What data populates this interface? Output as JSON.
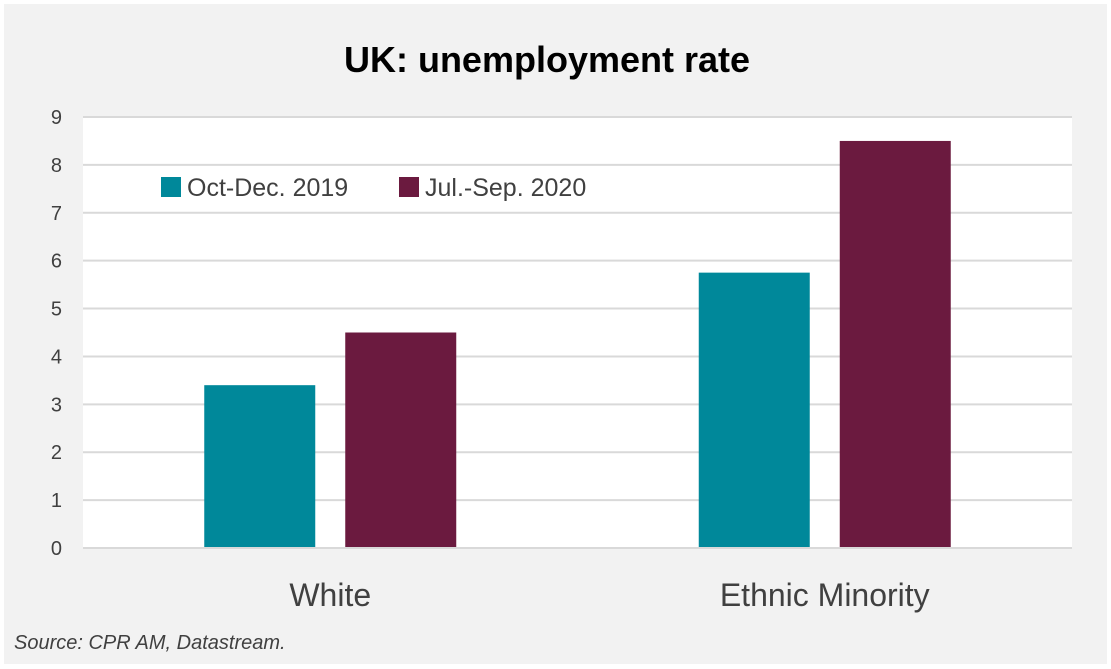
{
  "chart_data": {
    "type": "bar",
    "title": "UK: unemployment rate",
    "categories": [
      "White",
      "Ethnic Minority"
    ],
    "series": [
      {
        "name": "Oct-Dec. 2019",
        "values": [
          3.4,
          5.75
        ],
        "color": "#00889a"
      },
      {
        "name": "Jul.-Sep. 2020",
        "values": [
          4.5,
          8.5
        ],
        "color": "#6b1a3f"
      }
    ],
    "ylim": [
      0,
      9
    ],
    "yticks": [
      "0",
      "1",
      "2",
      "3",
      "4",
      "5",
      "6",
      "7",
      "8",
      "9"
    ],
    "grid": true,
    "legend_position": "top-left",
    "xlabel": "",
    "ylabel": ""
  },
  "source": "Source: CPR AM, Datastream."
}
